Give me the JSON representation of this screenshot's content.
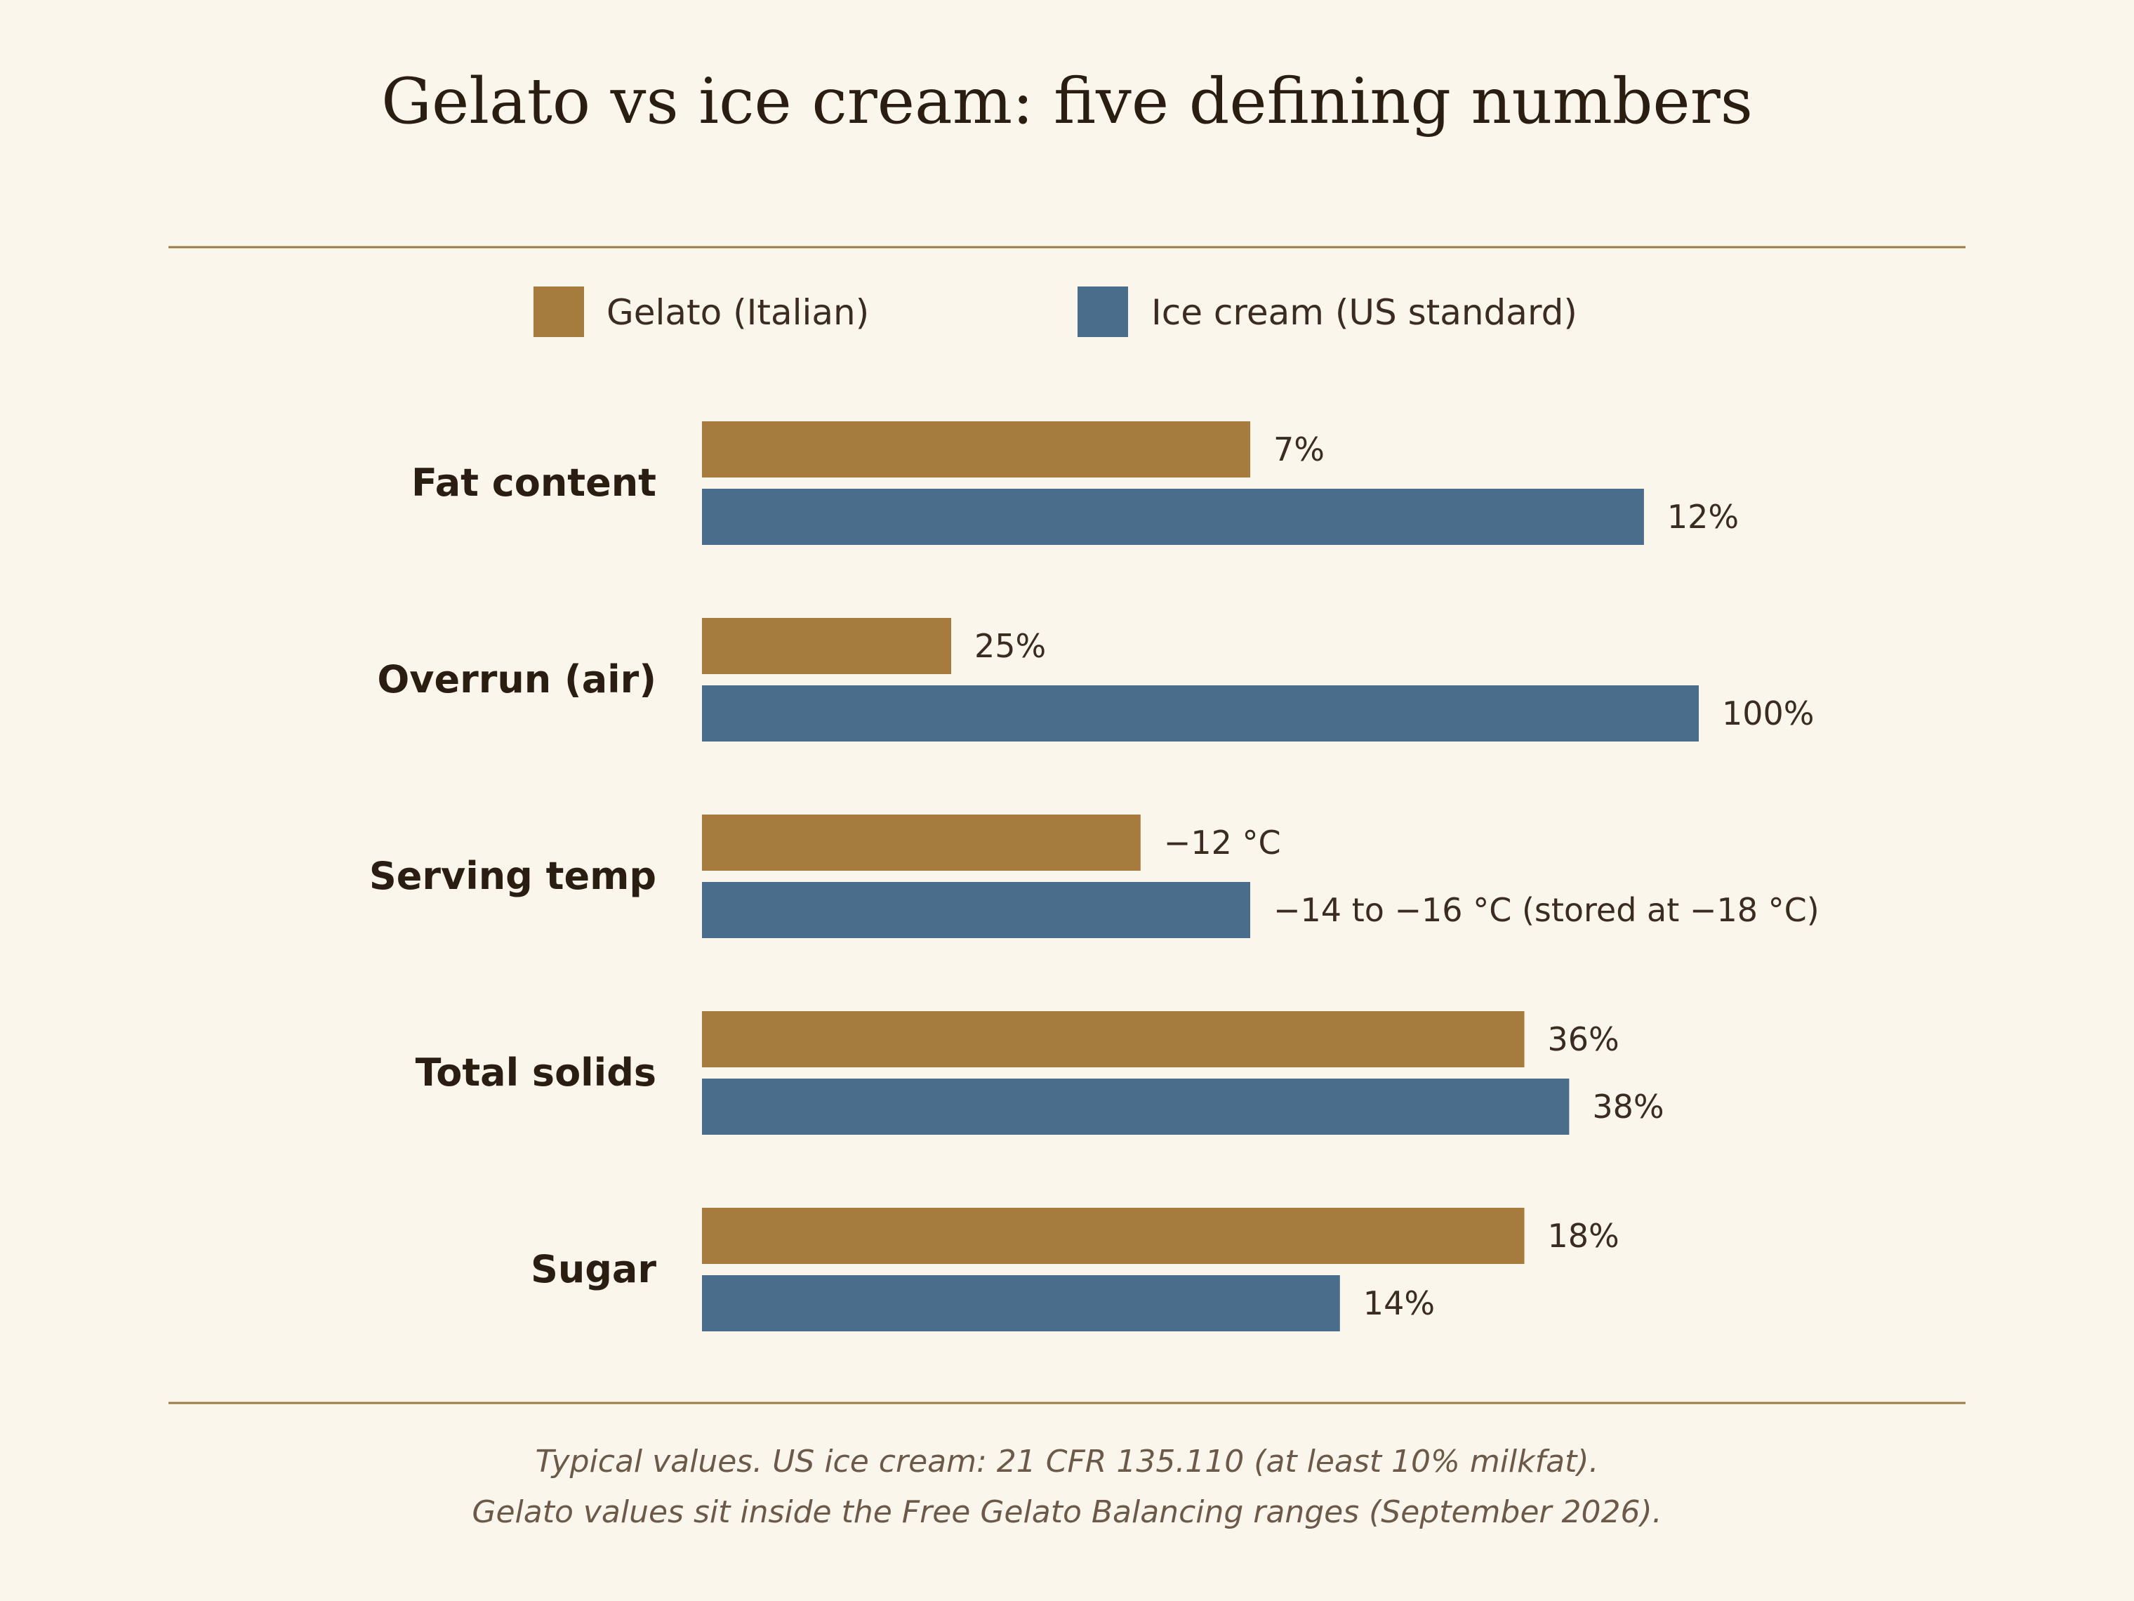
{
  "chart_data": {
    "type": "bar",
    "orientation": "horizontal",
    "title": "Gelato vs ice cream: five defining numbers",
    "categories": [
      "Fat content",
      "Overrun (air)",
      "Serving temp",
      "Total solids",
      "Sugar"
    ],
    "series": [
      {
        "name": "Gelato (Italian)",
        "color": "#a57c3d",
        "values": [
          11,
          5,
          8.8,
          16.5,
          16.5
        ],
        "labels": [
          "7%",
          "25%",
          "−12 °C",
          "36%",
          "18%"
        ]
      },
      {
        "name": "Ice cream (US standard)",
        "color": "#4a6d8c",
        "values": [
          18.9,
          20,
          11,
          17.4,
          12.8
        ],
        "labels": [
          "12%",
          "100%",
          "−14 to −16 °C (stored at −18 °C)",
          "38%",
          "14%"
        ]
      }
    ],
    "xlim": [
      0,
      20
    ],
    "grid": false,
    "legend": "top-center",
    "rule_color": "#9a7a45"
  },
  "notes": [
    "Typical values. US ice cream: 21 CFR 135.110 (at least 10% milkfat).",
    "Gelato values sit inside the Free Gelato Balancing ranges (September 2026)."
  ]
}
